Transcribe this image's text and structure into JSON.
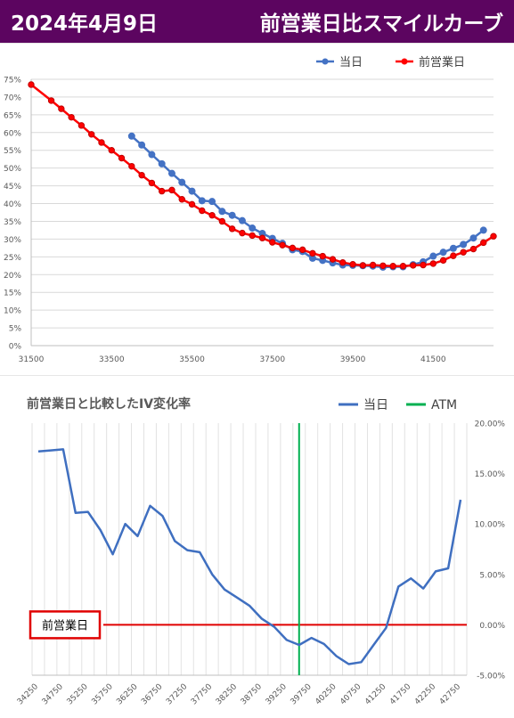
{
  "header": {
    "date": "2024年4月9日",
    "title": "前営業日比スマイルカーブ"
  },
  "colors": {
    "header_bg": "#5c0560",
    "today": "#4472c4",
    "prev": "#ff0000",
    "atm": "#00b050",
    "prev_line": "#e00000"
  },
  "chart_data": [
    {
      "type": "line",
      "title": "",
      "legend_position": "top-right",
      "grid": true,
      "xlim": [
        31500,
        43000
      ],
      "ylim": [
        0,
        75
      ],
      "x_ticks": [
        "31500",
        "33500",
        "35500",
        "37500",
        "39500",
        "41500"
      ],
      "y_ticks": [
        "0%",
        "5%",
        "10%",
        "15%",
        "20%",
        "25%",
        "30%",
        "35%",
        "40%",
        "45%",
        "50%",
        "55%",
        "60%",
        "65%",
        "70%",
        "75%"
      ],
      "series": [
        {
          "name": "当日",
          "color": "#4472c4",
          "x": [
            34000,
            34250,
            34500,
            34750,
            35000,
            35250,
            35500,
            35750,
            36000,
            36250,
            36500,
            36750,
            37000,
            37250,
            37500,
            37750,
            38000,
            38250,
            38500,
            38750,
            39000,
            39250,
            39500,
            39750,
            40000,
            40250,
            40500,
            40750,
            41000,
            41250,
            41500,
            41750,
            42000,
            42250,
            42500,
            42750
          ],
          "y": [
            59.0,
            56.5,
            53.8,
            51.2,
            48.5,
            46.0,
            43.5,
            40.8,
            40.6,
            37.8,
            36.7,
            35.2,
            33.1,
            31.6,
            30.2,
            28.8,
            27.0,
            26.5,
            24.6,
            24.0,
            23.3,
            22.7,
            22.6,
            22.5,
            22.4,
            22.1,
            22.2,
            22.2,
            22.8,
            23.6,
            25.2,
            26.3,
            27.4,
            28.5,
            30.3,
            32.5
          ]
        },
        {
          "name": "前営業日",
          "color": "#ff0000",
          "x": [
            31500,
            32000,
            32250,
            32500,
            32750,
            33000,
            33250,
            33500,
            33750,
            34000,
            34250,
            34500,
            34750,
            35000,
            35250,
            35500,
            35750,
            36000,
            36250,
            36500,
            36750,
            37000,
            37250,
            37500,
            37750,
            38000,
            38250,
            38500,
            38750,
            39000,
            39250,
            39500,
            39750,
            40000,
            40250,
            40500,
            40750,
            41000,
            41250,
            41500,
            41750,
            42000,
            42250,
            42500,
            42750,
            43000
          ],
          "y": [
            73.5,
            69.0,
            66.7,
            64.3,
            62.0,
            59.5,
            57.2,
            55.0,
            52.8,
            50.5,
            48.0,
            45.8,
            43.5,
            43.8,
            41.2,
            39.8,
            38.0,
            36.7,
            35.0,
            32.9,
            31.7,
            31.0,
            30.3,
            29.1,
            28.3,
            27.5,
            27.0,
            26.0,
            25.2,
            24.3,
            23.4,
            22.9,
            22.6,
            22.7,
            22.5,
            22.4,
            22.4,
            22.6,
            22.7,
            23.1,
            24.0,
            25.3,
            26.3,
            27.2,
            29.0,
            30.8
          ]
        }
      ]
    },
    {
      "type": "line",
      "title": "前営業日と比較したIV変化率",
      "legend_position": "top-right",
      "grid": true,
      "ylim": [
        -5,
        20
      ],
      "categories": [
        "34250",
        "34500",
        "34750",
        "35000",
        "35250",
        "35500",
        "35750",
        "36000",
        "36250",
        "36500",
        "36750",
        "37000",
        "37250",
        "37500",
        "37750",
        "38000",
        "38250",
        "38500",
        "38750",
        "39000",
        "39250",
        "39500",
        "39750",
        "40000",
        "40250",
        "40500",
        "40750",
        "41000",
        "41250",
        "41500",
        "41750",
        "42000",
        "42250",
        "42500",
        "42750"
      ],
      "x_tick_labels": [
        "34250",
        "34750",
        "35250",
        "35750",
        "36250",
        "36750",
        "37250",
        "37750",
        "38250",
        "38750",
        "39250",
        "39750",
        "40250",
        "40750",
        "41250",
        "41750",
        "42250",
        "42750"
      ],
      "y_ticks": [
        "20.00%",
        "15.00%",
        "10.00%",
        "5.00%",
        "0.00%",
        "-5.00%"
      ],
      "series": [
        {
          "name": "当日",
          "color": "#3f6fc0",
          "values": [
            17.2,
            17.3,
            17.4,
            11.1,
            11.2,
            9.4,
            7.0,
            10.0,
            8.8,
            11.8,
            10.8,
            8.3,
            7.4,
            7.2,
            5.0,
            3.5,
            2.7,
            1.9,
            0.6,
            -0.2,
            -1.5,
            -2.0,
            -1.3,
            -1.9,
            -3.1,
            -3.9,
            -3.7,
            -2.0,
            -0.3,
            3.8,
            4.6,
            3.6,
            5.3,
            5.6,
            12.4
          ]
        },
        {
          "name": "ATM",
          "color": "#00b050",
          "x": "39500"
        }
      ],
      "annotations": [
        {
          "label": "前営業日",
          "value": 0
        }
      ]
    }
  ]
}
